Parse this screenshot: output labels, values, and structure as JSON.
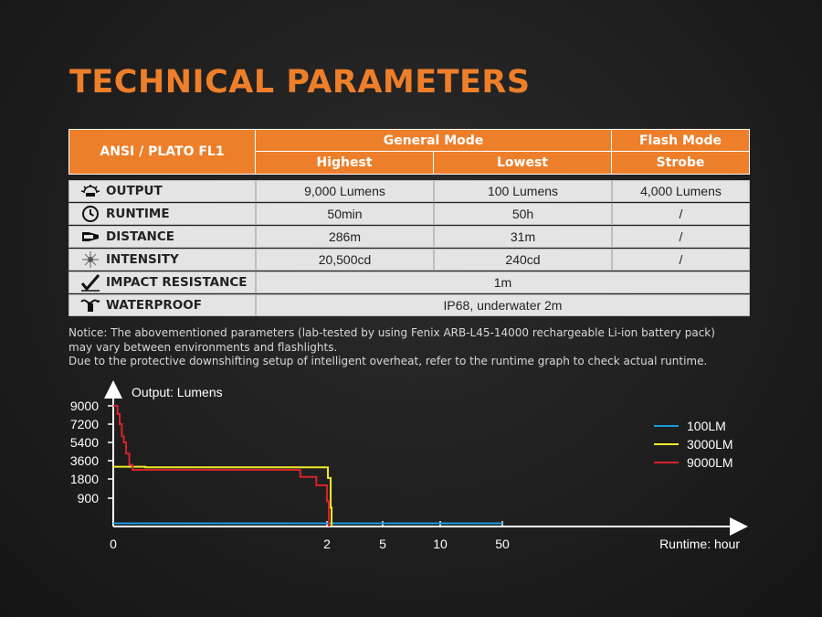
{
  "title": "TECHNICAL PARAMETERS",
  "table": {
    "corner": "ANSI / PLATO FL1",
    "group1": "General Mode",
    "group2": "Flash Mode",
    "col_highest": "Highest",
    "col_lowest": "Lowest",
    "col_strobe": "Strobe",
    "rows": [
      {
        "label": "OUTPUT",
        "icon": "output-icon",
        "highest": "9,000 Lumens",
        "lowest": "100 Lumens",
        "strobe": "4,000 Lumens"
      },
      {
        "label": "RUNTIME",
        "icon": "clock-icon",
        "highest": "50min",
        "lowest": "50h",
        "strobe": "/"
      },
      {
        "label": "DISTANCE",
        "icon": "beam-icon",
        "highest": "286m",
        "lowest": "31m",
        "strobe": "/"
      },
      {
        "label": "INTENSITY",
        "icon": "intensity-icon",
        "highest": "20,500cd",
        "lowest": "240cd",
        "strobe": "/"
      },
      {
        "label": "IMPACT RESISTANCE",
        "icon": "impact-icon",
        "merged": "1m"
      },
      {
        "label": "WATERPROOF",
        "icon": "waterproof-icon",
        "merged": "IP68, underwater 2m"
      }
    ]
  },
  "notice": {
    "line1": "Notice: The abovementioned parameters (lab-tested by using Fenix ARB-L45-14000 rechargeable Li-ion battery pack)",
    "line2": "may vary between environments and flashlights.",
    "line3": "Due to the protective downshifting setup of intelligent overheat, refer to the runtime graph to check actual runtime."
  },
  "colors": {
    "accent": "#ee7f2a",
    "series_100": "#1a9be0",
    "series_3000": "#f2ea2b",
    "series_9000": "#d8222b"
  },
  "chart_data": {
    "type": "line",
    "ylabel": "Output: Lumens",
    "xlabel": "Runtime: hour",
    "y_ticks": [
      "9000",
      "7200",
      "5400",
      "3600",
      "1800",
      "900"
    ],
    "x_ticks": [
      "0",
      "2",
      "5",
      "10",
      "50"
    ],
    "x_scale": "non-linear (compressed)",
    "legend_position": "top-right",
    "series": [
      {
        "name": "100LM",
        "color": "#1a9be0",
        "x": [
          0,
          50
        ],
        "y": [
          100,
          100
        ]
      },
      {
        "name": "3000LM",
        "color": "#f2ea2b",
        "x": [
          0,
          0.15,
          0.3,
          2.0,
          2.05,
          2.15,
          2.2,
          2.25
        ],
        "y": [
          3000,
          3000,
          2950,
          2950,
          1900,
          1900,
          600,
          0
        ]
      },
      {
        "name": "9000LM",
        "color": "#d8222b",
        "x": [
          0,
          0.04,
          0.06,
          0.08,
          0.1,
          0.12,
          0.15,
          0.18,
          1.6,
          1.75,
          1.9,
          2.0,
          2.1
        ],
        "y": [
          9000,
          8200,
          7200,
          6000,
          5400,
          4300,
          3200,
          2700,
          2700,
          2000,
          1500,
          800,
          0
        ]
      }
    ]
  }
}
